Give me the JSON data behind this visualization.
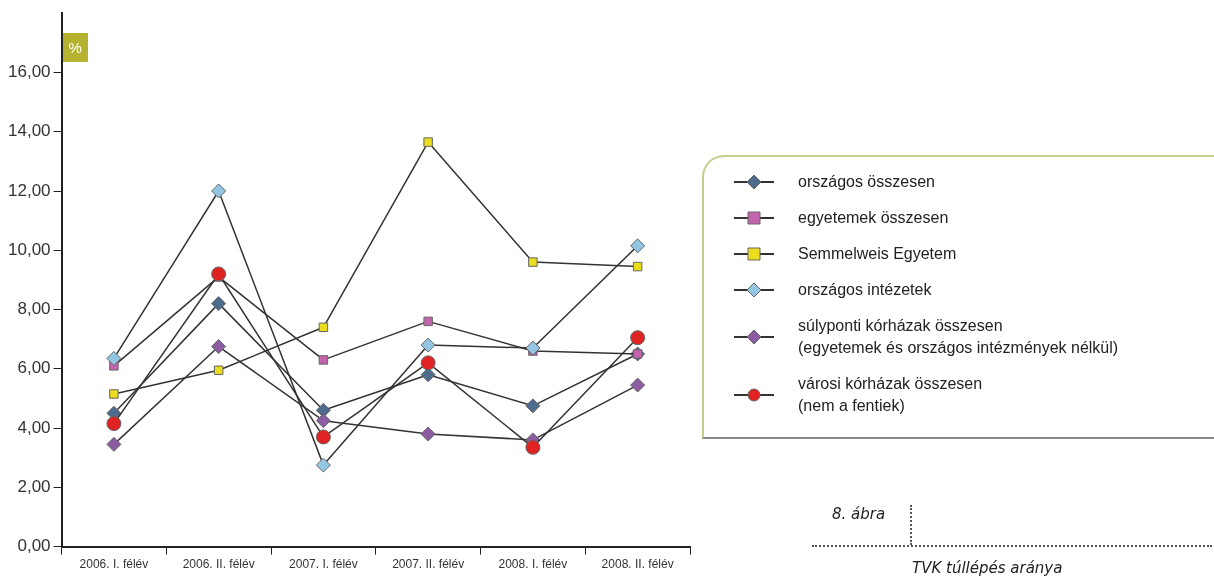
{
  "chart_data": {
    "type": "line",
    "ylabel": "%",
    "categories": [
      "2006. I. félév",
      "2006. II. félév",
      "2007. I. félév",
      "2007. II. félév",
      "2008. I. félév",
      "2008. II. félév"
    ],
    "series": [
      {
        "name": "országos összesen",
        "color": "#4d6b8c",
        "marker": "diamond",
        "values": [
          4.5,
          8.2,
          4.6,
          5.8,
          4.75,
          6.5
        ]
      },
      {
        "name": "egyetemek összesen",
        "color": "#c463ad",
        "marker": "square",
        "values": [
          6.1,
          9.1,
          6.3,
          7.6,
          6.6,
          6.5
        ]
      },
      {
        "name": "Semmelweis Egyetem",
        "color": "#ecdc1e",
        "marker": "square",
        "values": [
          5.15,
          5.95,
          7.4,
          13.65,
          9.6,
          9.45
        ]
      },
      {
        "name": "országos intézetek",
        "color": "#92c6e2",
        "marker": "diamond",
        "values": [
          6.35,
          12.0,
          2.75,
          6.8,
          6.7,
          10.15
        ]
      },
      {
        "name": "súlyponti kórházak összesen\n(egyetemek és országos intézmények nélkül)",
        "color": "#8c5ca3",
        "marker": "diamond",
        "values": [
          3.45,
          6.75,
          4.25,
          3.8,
          3.6,
          5.45
        ]
      },
      {
        "name": "városi kórházak összesen\n(nem a fentiek)",
        "color": "#e02222",
        "marker": "circle",
        "values": [
          4.15,
          9.2,
          3.7,
          6.2,
          3.35,
          7.05
        ]
      }
    ],
    "ylim": [
      0,
      18
    ],
    "yticks": [
      {
        "value": 0,
        "label": "0,00"
      },
      {
        "value": 2,
        "label": "2,00"
      },
      {
        "value": 4,
        "label": "4,00"
      },
      {
        "value": 6,
        "label": "6,00"
      },
      {
        "value": 8,
        "label": "8,00"
      },
      {
        "value": 10,
        "label": "10,00"
      },
      {
        "value": 12,
        "label": "12,00"
      },
      {
        "value": 14,
        "label": "14,00"
      },
      {
        "value": 16,
        "label": "16,00"
      }
    ],
    "grid": false,
    "legend": "right",
    "line_style": "solid",
    "annotations": [
      "8. ábra",
      "TVK túllépés aránya"
    ]
  }
}
